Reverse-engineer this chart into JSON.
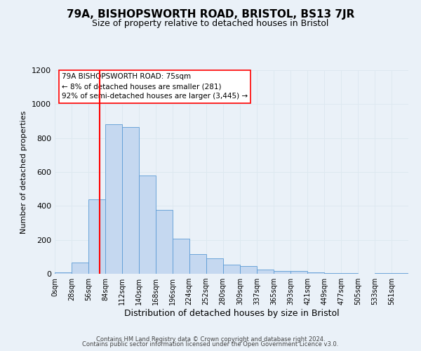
{
  "title": "79A, BISHOPSWORTH ROAD, BRISTOL, BS13 7JR",
  "subtitle": "Size of property relative to detached houses in Bristol",
  "xlabel": "Distribution of detached houses by size in Bristol",
  "ylabel": "Number of detached properties",
  "footer_line1": "Contains HM Land Registry data © Crown copyright and database right 2024.",
  "footer_line2": "Contains public sector information licensed under the Open Government Licence v3.0.",
  "annotation_title": "79A BISHOPSWORTH ROAD: 75sqm",
  "annotation_line2": "← 8% of detached houses are smaller (281)",
  "annotation_line3": "92% of semi-detached houses are larger (3,445) →",
  "bar_left_edges": [
    0,
    28,
    56,
    84,
    112,
    140,
    168,
    196,
    224,
    252,
    280,
    309,
    337,
    365,
    393,
    421,
    449,
    477,
    505,
    533,
    561
  ],
  "bar_heights": [
    10,
    65,
    440,
    880,
    865,
    580,
    375,
    205,
    115,
    90,
    55,
    45,
    25,
    18,
    18,
    8,
    5,
    3,
    2,
    5,
    5
  ],
  "bar_widths": [
    28,
    28,
    28,
    28,
    28,
    28,
    28,
    28,
    28,
    28,
    29,
    28,
    28,
    28,
    28,
    28,
    28,
    28,
    28,
    28,
    28
  ],
  "bar_color": "#c5d8f0",
  "bar_edge_color": "#5b9bd5",
  "vline_x": 75,
  "vline_color": "red",
  "xlim": [
    0,
    589
  ],
  "ylim": [
    0,
    1200
  ],
  "yticks": [
    0,
    200,
    400,
    600,
    800,
    1000,
    1200
  ],
  "xtick_labels": [
    "0sqm",
    "28sqm",
    "56sqm",
    "84sqm",
    "112sqm",
    "140sqm",
    "168sqm",
    "196sqm",
    "224sqm",
    "252sqm",
    "280sqm",
    "309sqm",
    "337sqm",
    "365sqm",
    "393sqm",
    "421sqm",
    "449sqm",
    "477sqm",
    "505sqm",
    "533sqm",
    "561sqm"
  ],
  "xtick_positions": [
    0,
    28,
    56,
    84,
    112,
    140,
    168,
    196,
    224,
    252,
    280,
    309,
    337,
    365,
    393,
    421,
    449,
    477,
    505,
    533,
    561
  ],
  "grid_color": "#dde8f0",
  "background_color": "#eaf1f8",
  "title_fontsize": 11,
  "subtitle_fontsize": 9,
  "xlabel_fontsize": 9,
  "ylabel_fontsize": 8,
  "tick_fontsize": 7,
  "ytick_fontsize": 8,
  "annotation_fontsize": 7.5
}
